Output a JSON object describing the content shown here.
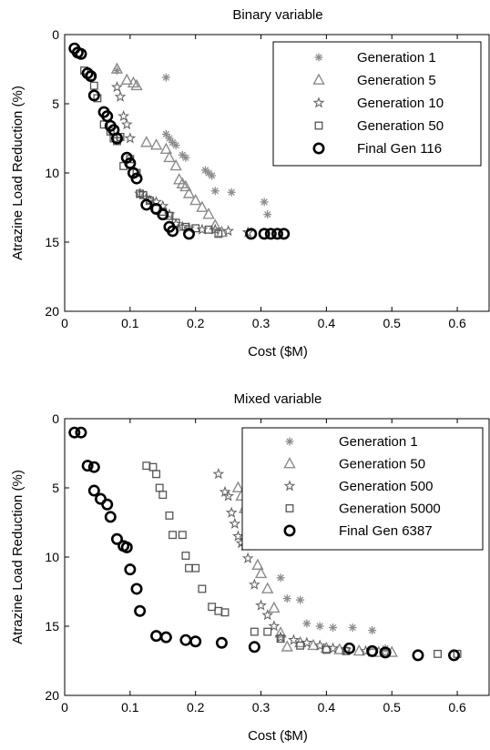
{
  "chart_data": [
    {
      "type": "scatter",
      "title": "Binary variable",
      "xlabel": "Cost ($M)",
      "ylabel": "Atrazine Load Reduction (%)",
      "xlim": [
        0,
        0.65
      ],
      "ylim": [
        0,
        20
      ],
      "y_reversed": true,
      "xticks": [
        "0",
        "0.1",
        "0.2",
        "0.3",
        "0.4",
        "0.5",
        "0.6"
      ],
      "yticks": [
        "0",
        "5",
        "10",
        "15",
        "20"
      ],
      "legend_position": "top-right",
      "series": [
        {
          "name": "Generation 1",
          "marker": "asterisk",
          "color": "#8c8c8c",
          "x": [
            0.08,
            0.155,
            0.155,
            0.16,
            0.165,
            0.17,
            0.18,
            0.185,
            0.215,
            0.22,
            0.225,
            0.23,
            0.255,
            0.305,
            0.31
          ],
          "y": [
            2.6,
            3.1,
            7.2,
            7.5,
            7.8,
            8.0,
            8.7,
            8.9,
            9.8,
            10.0,
            10.2,
            11.3,
            11.4,
            12.1,
            13.0
          ]
        },
        {
          "name": "Generation 5",
          "marker": "triangle",
          "color": "#8c8c8c",
          "x": [
            0.08,
            0.095,
            0.105,
            0.11,
            0.125,
            0.14,
            0.155,
            0.16,
            0.17,
            0.175,
            0.18,
            0.185,
            0.19,
            0.2,
            0.21,
            0.22,
            0.23,
            0.24
          ],
          "y": [
            2.5,
            3.3,
            3.5,
            3.7,
            7.8,
            8.0,
            8.3,
            8.9,
            9.5,
            10.5,
            10.8,
            11.0,
            11.5,
            12.0,
            12.5,
            13.0,
            13.8,
            14.3
          ]
        },
        {
          "name": "Generation 10",
          "marker": "star",
          "color": "#666666",
          "x": [
            0.08,
            0.085,
            0.09,
            0.095,
            0.1,
            0.115,
            0.125,
            0.13,
            0.14,
            0.15,
            0.16,
            0.17,
            0.18,
            0.19,
            0.21,
            0.23,
            0.25,
            0.28
          ],
          "y": [
            3.8,
            4.5,
            5.9,
            6.5,
            7.5,
            11.5,
            11.8,
            12.0,
            12.1,
            12.4,
            13.0,
            13.7,
            13.9,
            14.0,
            14.1,
            14.1,
            14.2,
            14.3
          ]
        },
        {
          "name": "Generation 50",
          "marker": "square",
          "color": "#555555",
          "x": [
            0.03,
            0.04,
            0.045,
            0.05,
            0.06,
            0.07,
            0.075,
            0.08,
            0.085,
            0.09,
            0.1,
            0.11,
            0.115,
            0.12,
            0.13,
            0.14,
            0.15,
            0.16,
            0.17,
            0.185,
            0.2,
            0.22,
            0.235
          ],
          "y": [
            2.6,
            3.0,
            3.7,
            4.6,
            6.5,
            7.0,
            7.5,
            7.7,
            7.4,
            9.5,
            9.0,
            10.0,
            11.5,
            11.6,
            12.0,
            12.6,
            12.8,
            13.1,
            13.6,
            13.9,
            14.0,
            14.1,
            14.4
          ]
        },
        {
          "name": "Final Gen 116",
          "marker": "circle",
          "color": "#000000",
          "x": [
            0.015,
            0.02,
            0.025,
            0.035,
            0.04,
            0.045,
            0.06,
            0.065,
            0.07,
            0.075,
            0.08,
            0.095,
            0.1,
            0.105,
            0.11,
            0.125,
            0.14,
            0.15,
            0.16,
            0.165,
            0.19,
            0.285,
            0.305,
            0.315,
            0.325,
            0.335
          ],
          "y": [
            1.0,
            1.3,
            1.4,
            2.8,
            3.0,
            4.4,
            5.6,
            5.9,
            6.6,
            6.9,
            7.5,
            8.9,
            9.3,
            10.0,
            10.4,
            12.3,
            12.6,
            13.0,
            13.9,
            14.2,
            14.4,
            14.4,
            14.4,
            14.4,
            14.4,
            14.4
          ]
        }
      ]
    },
    {
      "type": "scatter",
      "title": "Mixed variable",
      "xlabel": "Cost ($M)",
      "ylabel": "Atrazine Load Reduction (%)",
      "xlim": [
        0,
        0.65
      ],
      "ylim": [
        0,
        20
      ],
      "y_reversed": true,
      "xticks": [
        "0",
        "0.1",
        "0.2",
        "0.3",
        "0.4",
        "0.5",
        "0.6"
      ],
      "yticks": [
        "0",
        "5",
        "10",
        "15",
        "20"
      ],
      "legend_position": "top-right",
      "series": [
        {
          "name": "Generation 1",
          "marker": "asterisk",
          "color": "#8c8c8c",
          "x": [
            0.33,
            0.34,
            0.36,
            0.37,
            0.39,
            0.41,
            0.44,
            0.47,
            0.49
          ],
          "y": [
            11.5,
            13.0,
            13.1,
            14.8,
            15.0,
            15.1,
            15.1,
            15.3,
            16.6
          ]
        },
        {
          "name": "Generation 50",
          "marker": "triangle",
          "color": "#8c8c8c",
          "x": [
            0.265,
            0.27,
            0.275,
            0.28,
            0.285,
            0.29,
            0.295,
            0.3,
            0.31,
            0.32,
            0.33,
            0.34,
            0.36,
            0.38,
            0.4,
            0.42,
            0.45,
            0.48,
            0.5
          ],
          "y": [
            5.0,
            5.6,
            6.5,
            7.4,
            8.2,
            9.0,
            10.6,
            11.2,
            12.3,
            13.7,
            15.5,
            16.5,
            16.2,
            16.4,
            16.6,
            16.7,
            16.8,
            16.9,
            16.9
          ]
        },
        {
          "name": "Generation 500",
          "marker": "star",
          "color": "#666666",
          "x": [
            0.235,
            0.245,
            0.25,
            0.255,
            0.26,
            0.265,
            0.27,
            0.275,
            0.28,
            0.29,
            0.3,
            0.31,
            0.32,
            0.33,
            0.35,
            0.37,
            0.39,
            0.41,
            0.43,
            0.46,
            0.49
          ],
          "y": [
            4.0,
            5.3,
            5.6,
            6.8,
            7.6,
            8.5,
            9.0,
            9.2,
            10.1,
            12.0,
            13.5,
            14.2,
            15.0,
            15.8,
            16.0,
            16.2,
            16.4,
            16.6,
            16.7,
            16.8,
            16.9
          ]
        },
        {
          "name": "Generation 5000",
          "marker": "square",
          "color": "#555555",
          "x": [
            0.125,
            0.135,
            0.14,
            0.145,
            0.15,
            0.16,
            0.165,
            0.18,
            0.185,
            0.19,
            0.2,
            0.21,
            0.225,
            0.235,
            0.245,
            0.29,
            0.31,
            0.33,
            0.36,
            0.4,
            0.43,
            0.47,
            0.57,
            0.6
          ],
          "y": [
            3.4,
            3.5,
            4.0,
            5.0,
            5.5,
            7.0,
            8.4,
            8.4,
            9.9,
            10.8,
            10.8,
            12.3,
            13.6,
            13.9,
            14.0,
            15.4,
            15.4,
            15.9,
            16.4,
            16.7,
            16.8,
            16.9,
            17.0,
            17.0
          ]
        },
        {
          "name": "Final Gen 6387",
          "marker": "circle",
          "color": "#000000",
          "x": [
            0.015,
            0.025,
            0.035,
            0.045,
            0.045,
            0.055,
            0.065,
            0.07,
            0.08,
            0.09,
            0.095,
            0.1,
            0.11,
            0.115,
            0.14,
            0.155,
            0.185,
            0.2,
            0.24,
            0.29,
            0.435,
            0.47,
            0.49,
            0.54,
            0.595
          ],
          "y": [
            1.0,
            1.0,
            3.4,
            3.5,
            5.2,
            5.8,
            6.2,
            7.1,
            8.7,
            9.2,
            9.3,
            10.9,
            12.3,
            13.9,
            15.7,
            15.8,
            16.0,
            16.1,
            16.2,
            16.5,
            16.6,
            16.8,
            16.9,
            17.1,
            17.1
          ]
        }
      ]
    }
  ]
}
